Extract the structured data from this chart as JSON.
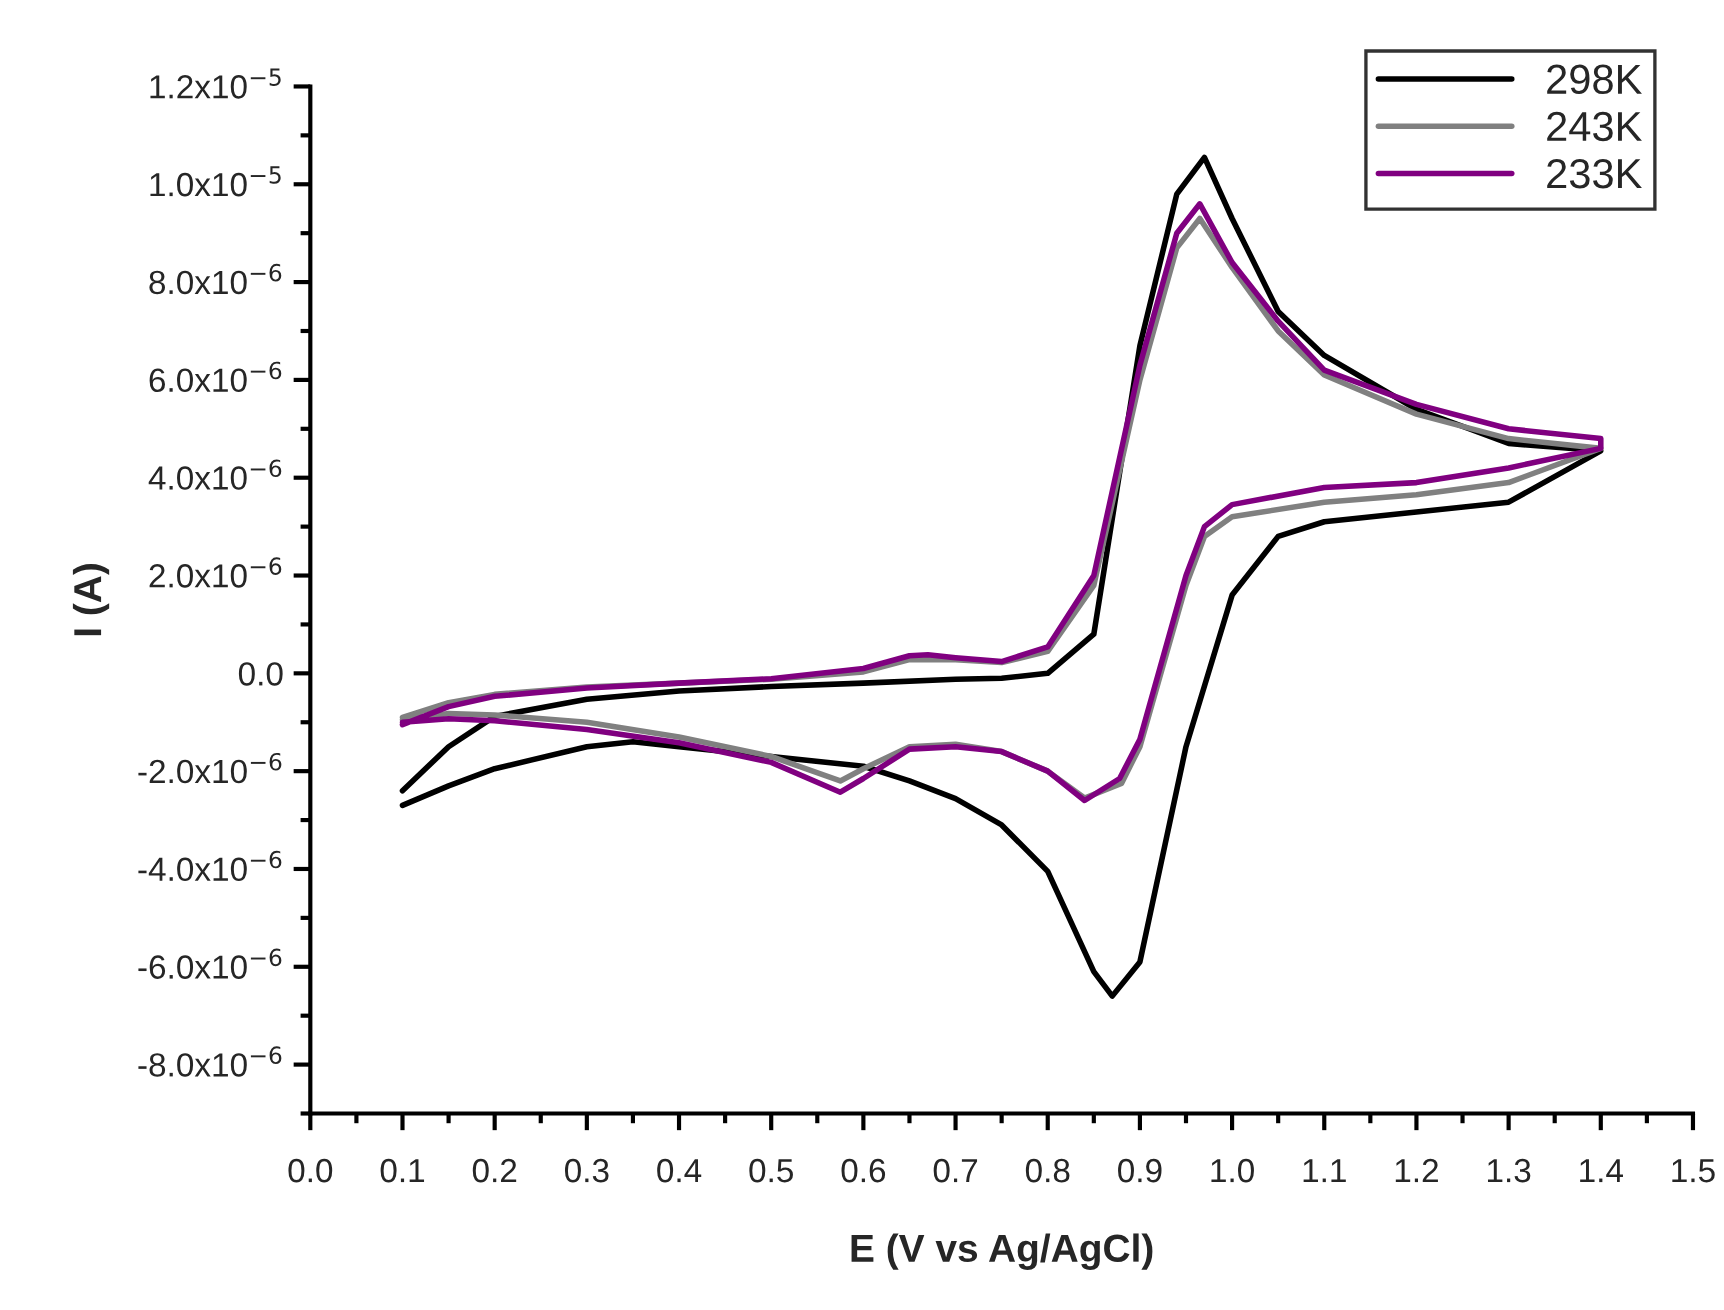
{
  "chart_data": {
    "type": "line",
    "xlabel": "E (V vs Ag/AgCl)",
    "ylabel": "I (A)",
    "xlim": [
      0,
      1.5
    ],
    "ylim": [
      -9e-06,
      1.2e-05
    ],
    "xticks": [
      {
        "value": 0,
        "label": "0.0"
      },
      {
        "value": 0.05,
        "label": null
      },
      {
        "value": 0.1,
        "label": "0.1"
      },
      {
        "value": 0.15,
        "label": null
      },
      {
        "value": 0.2,
        "label": "0.2"
      },
      {
        "value": 0.25,
        "label": null
      },
      {
        "value": 0.3,
        "label": "0.3"
      },
      {
        "value": 0.35,
        "label": null
      },
      {
        "value": 0.4,
        "label": "0.4"
      },
      {
        "value": 0.45,
        "label": null
      },
      {
        "value": 0.5,
        "label": "0.5"
      },
      {
        "value": 0.55,
        "label": null
      },
      {
        "value": 0.6,
        "label": "0.6"
      },
      {
        "value": 0.65,
        "label": null
      },
      {
        "value": 0.7,
        "label": "0.7"
      },
      {
        "value": 0.75,
        "label": null
      },
      {
        "value": 0.8,
        "label": "0.8"
      },
      {
        "value": 0.85,
        "label": null
      },
      {
        "value": 0.9,
        "label": "0.9"
      },
      {
        "value": 0.95,
        "label": null
      },
      {
        "value": 1.0,
        "label": "1.0"
      },
      {
        "value": 1.05,
        "label": null
      },
      {
        "value": 1.1,
        "label": "1.1"
      },
      {
        "value": 1.15,
        "label": null
      },
      {
        "value": 1.2,
        "label": "1.2"
      },
      {
        "value": 1.25,
        "label": null
      },
      {
        "value": 1.3,
        "label": "1.3"
      },
      {
        "value": 1.35,
        "label": null
      },
      {
        "value": 1.4,
        "label": "1.4"
      },
      {
        "value": 1.45,
        "label": null
      },
      {
        "value": 1.5,
        "label": "1.5"
      }
    ],
    "yticks": [
      {
        "value": -9e-06,
        "label": null
      },
      {
        "value": -8e-06,
        "label": "-8.0x10$^{−6}$"
      },
      {
        "value": -7e-06,
        "label": null
      },
      {
        "value": -6e-06,
        "label": "-6.0x10$^{−6}$"
      },
      {
        "value": -5e-06,
        "label": null
      },
      {
        "value": -4e-06,
        "label": "-4.0x10$^{−6}$"
      },
      {
        "value": -3e-06,
        "label": null
      },
      {
        "value": -2e-06,
        "label": "-2.0x10$^{−6}$"
      },
      {
        "value": -1e-06,
        "label": null
      },
      {
        "value": 0,
        "label": "0.0"
      },
      {
        "value": 1e-06,
        "label": null
      },
      {
        "value": 2e-06,
        "label": "2.0x10$^{−6}$"
      },
      {
        "value": 3e-06,
        "label": null
      },
      {
        "value": 4e-06,
        "label": "4.0x10$^{−6}$"
      },
      {
        "value": 5e-06,
        "label": null
      },
      {
        "value": 6e-06,
        "label": "6.0x10$^{−6}$"
      },
      {
        "value": 7e-06,
        "label": null
      },
      {
        "value": 8e-06,
        "label": "8.0x10$^{−6}$"
      },
      {
        "value": 9e-06,
        "label": null
      },
      {
        "value": 1e-05,
        "label": "1.0x10$^{−5}$"
      },
      {
        "value": 1.1e-05,
        "label": null
      },
      {
        "value": 1.2e-05,
        "label": "1.2x10$^{−5}$"
      }
    ],
    "grid": false,
    "legend": "top right",
    "marker": "none",
    "line_style": "solid",
    "series": [
      {
        "name": "298K",
        "color": "#000000",
        "x": [
          0.1,
          0.15,
          0.2,
          0.3,
          0.4,
          0.5,
          0.6,
          0.7,
          0.75,
          0.8,
          0.85,
          0.9,
          0.94,
          0.97,
          1.0,
          1.05,
          1.1,
          1.2,
          1.3,
          1.4,
          1.3,
          1.2,
          1.1,
          1.05,
          1.0,
          0.95,
          0.9,
          0.87,
          0.85,
          0.8,
          0.75,
          0.7,
          0.65,
          0.6,
          0.5,
          0.4,
          0.35,
          0.3,
          0.2,
          0.15,
          0.1
        ],
        "values": [
          -2.4e-06,
          -1.5e-06,
          -8.8e-07,
          -5.3e-07,
          -3.6e-07,
          -2.7e-07,
          -2e-07,
          -1.2e-07,
          -1e-07,
          0.0,
          8e-07,
          6.7e-06,
          9.8e-06,
          1.055e-05,
          9.3e-06,
          7.4e-06,
          6.5e-06,
          5.4e-06,
          4.7e-06,
          4.55e-06,
          3.5e-06,
          3.3e-06,
          3.1e-06,
          2.8e-06,
          1.6e-06,
          -1.5e-06,
          -5.9e-06,
          -6.6e-06,
          -6.1e-06,
          -4.05e-06,
          -3.1e-06,
          -2.56e-06,
          -2.2e-06,
          -1.9e-06,
          -1.7e-06,
          -1.5e-06,
          -1.4e-06,
          -1.5e-06,
          -1.95e-06,
          -2.3e-06,
          -2.7e-06
        ]
      },
      {
        "name": "243K",
        "color": "#808080",
        "x": [
          0.1,
          0.15,
          0.2,
          0.3,
          0.4,
          0.5,
          0.6,
          0.65,
          0.7,
          0.75,
          0.8,
          0.85,
          0.9,
          0.94,
          0.965,
          1.0,
          1.05,
          1.1,
          1.2,
          1.3,
          1.4,
          1.3,
          1.2,
          1.1,
          1.0,
          0.97,
          0.95,
          0.9,
          0.88,
          0.84,
          0.8,
          0.75,
          0.7,
          0.65,
          0.6,
          0.575,
          0.5,
          0.4,
          0.3,
          0.2,
          0.15,
          0.1
        ],
        "values": [
          -9e-07,
          -6e-07,
          -4.3e-07,
          -2.8e-07,
          -2e-07,
          -1.2e-07,
          3e-08,
          2.8e-07,
          2.8e-07,
          2.2e-07,
          4.5e-07,
          1.8e-06,
          6e-06,
          8.7e-06,
          9.3e-06,
          8.3e-06,
          7e-06,
          6.1e-06,
          5.3e-06,
          4.8e-06,
          4.6e-06,
          3.9e-06,
          3.65e-06,
          3.5e-06,
          3.2e-06,
          2.8e-06,
          1.8e-06,
          -1.5e-06,
          -2.25e-06,
          -2.55e-06,
          -2e-06,
          -1.6e-06,
          -1.45e-06,
          -1.5e-06,
          -1.95e-06,
          -2.2e-06,
          -1.7e-06,
          -1.3e-06,
          -1e-06,
          -8.5e-07,
          -8.2e-07,
          -9.5e-07
        ]
      },
      {
        "name": "233K",
        "color": "#800080",
        "x": [
          0.1,
          0.15,
          0.2,
          0.3,
          0.4,
          0.5,
          0.6,
          0.65,
          0.67,
          0.7,
          0.75,
          0.8,
          0.85,
          0.9,
          0.94,
          0.965,
          1.0,
          1.05,
          1.1,
          1.2,
          1.3,
          1.4,
          1.4,
          1.3,
          1.2,
          1.1,
          1.0,
          0.97,
          0.95,
          0.9,
          0.878,
          0.84,
          0.8,
          0.75,
          0.7,
          0.65,
          0.6,
          0.575,
          0.5,
          0.4,
          0.3,
          0.2,
          0.15,
          0.1
        ],
        "values": [
          -1.05e-06,
          -6.8e-07,
          -4.7e-07,
          -3e-07,
          -2e-07,
          -1.1e-07,
          1e-07,
          3.6e-07,
          3.8e-07,
          3.2e-07,
          2.4e-07,
          5.4e-07,
          2e-06,
          6.3e-06,
          9e-06,
          9.6e-06,
          8.4e-06,
          7.2e-06,
          6.2e-06,
          5.5e-06,
          5e-06,
          4.8e-06,
          4.6e-06,
          4.2e-06,
          3.9e-06,
          3.8e-06,
          3.45e-06,
          3e-06,
          2e-06,
          -1.35e-06,
          -2.15e-06,
          -2.6e-06,
          -2e-06,
          -1.6e-06,
          -1.5e-06,
          -1.55e-06,
          -2.15e-06,
          -2.43e-06,
          -1.82e-06,
          -1.42e-06,
          -1.15e-06,
          -9.7e-07,
          -9.3e-07,
          -1e-06
        ]
      }
    ]
  }
}
